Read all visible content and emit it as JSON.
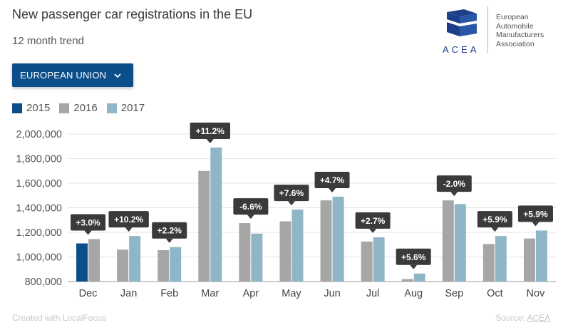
{
  "header": {
    "title": "New passenger car registrations in the EU",
    "subtitle": "12 month trend"
  },
  "dropdown": {
    "label": "EUROPEAN UNION"
  },
  "logo": {
    "acronym": "ACEA",
    "org_lines": [
      "European",
      "Automobile",
      "Manufacturers",
      "Association"
    ],
    "brand_color": "#1d3f8a"
  },
  "footer": {
    "created_with": "Created with LocalFocus",
    "source_prefix": "Source: ",
    "source_link": "ACEA"
  },
  "chart_data": {
    "type": "bar",
    "categories": [
      "Dec",
      "Jan",
      "Feb",
      "Mar",
      "Apr",
      "May",
      "Jun",
      "Jul",
      "Aug",
      "Sep",
      "Oct",
      "Nov"
    ],
    "series": [
      {
        "name": "2015",
        "color": "#0c4e8a",
        "values": [
          1110000,
          null,
          null,
          null,
          null,
          null,
          null,
          null,
          null,
          null,
          null,
          null
        ]
      },
      {
        "name": "2016",
        "color": "#a6a6a6",
        "values": [
          1145000,
          1060000,
          1055000,
          1700000,
          1275000,
          1290000,
          1460000,
          1125000,
          820000,
          1460000,
          1105000,
          1150000
        ]
      },
      {
        "name": "2017",
        "color": "#8fb6c7",
        "values": [
          null,
          1170000,
          1080000,
          1890000,
          1190000,
          1385000,
          1490000,
          1160000,
          865000,
          1430000,
          1170000,
          1215000
        ]
      }
    ],
    "change_labels": [
      "+3.0%",
      "+10.2%",
      "+2.2%",
      "+11.2%",
      "-6.6%",
      "+7.6%",
      "+4.7%",
      "+2.7%",
      "+5.6%",
      "-2.0%",
      "+5.9%",
      "+5.9%"
    ],
    "yticks": [
      "2,000,000",
      "1,800,000",
      "1,600,000",
      "1,400,000",
      "1,200,000",
      "1,000,000",
      "800,000"
    ],
    "ylim": [
      800000,
      2000000
    ],
    "grid": true,
    "legend_position": "top-left",
    "label_color": "#3a3a3a"
  }
}
